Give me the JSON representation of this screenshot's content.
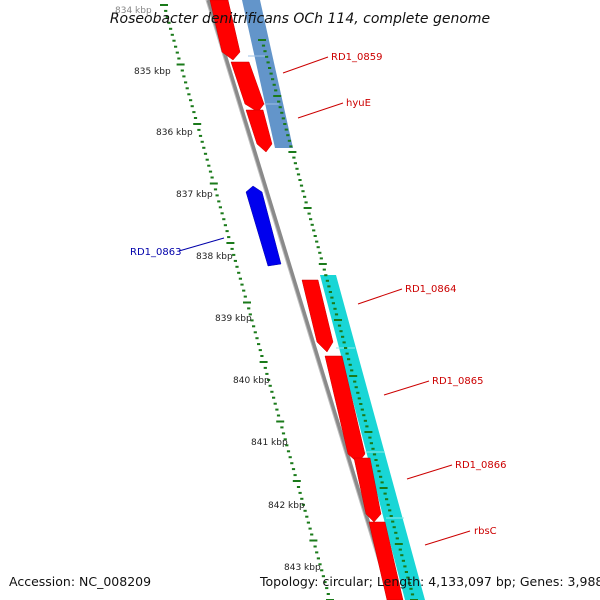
{
  "title": "Roseobacter denitrificans OCh 114, complete genome",
  "footer": {
    "accession": "Accession: NC_008209",
    "info": "Topology: circular; Length: 4,133,097 bp; Genes: 3,988"
  },
  "colors": {
    "backbone": "#8a8a8a",
    "tick": "#1a7a1a",
    "forward_cds": "#ff0000",
    "reverse_cds": "#0000ee",
    "label_forward": "#cc0000",
    "label_reverse": "#0000aa",
    "track_blue": "#5b8fc7",
    "track_cyan": "#19d6d6"
  },
  "ticks": [
    {
      "kbp": 834,
      "label": "834 kbp"
    },
    {
      "kbp": 835,
      "label": "835 kbp"
    },
    {
      "kbp": 836,
      "label": "836 kbp"
    },
    {
      "kbp": 837,
      "label": "837 kbp"
    },
    {
      "kbp": 838,
      "label": "838 kbp"
    },
    {
      "kbp": 839,
      "label": "839 kbp"
    },
    {
      "kbp": 840,
      "label": "840 kbp"
    },
    {
      "kbp": 841,
      "label": "841 kbp"
    },
    {
      "kbp": 842,
      "label": "842 kbp"
    },
    {
      "kbp": 843,
      "label": "843 kbp"
    }
  ],
  "genes": [
    {
      "label": "RD1_0859",
      "strand": "forward"
    },
    {
      "label": "hyuE",
      "strand": "forward"
    },
    {
      "label": "RD1_0863",
      "strand": "reverse"
    },
    {
      "label": "RD1_0864",
      "strand": "forward"
    },
    {
      "label": "RD1_0865",
      "strand": "forward"
    },
    {
      "label": "RD1_0866",
      "strand": "forward"
    },
    {
      "label": "rbsC",
      "strand": "forward"
    }
  ]
}
